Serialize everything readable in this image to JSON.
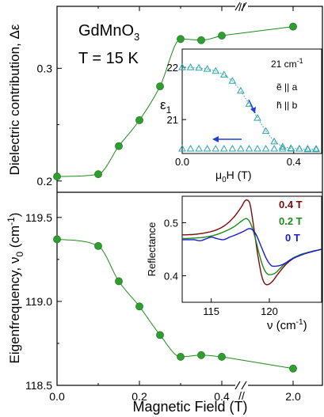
{
  "colors": {
    "marker": "#2e9e2e",
    "fit": "#1f8a1f",
    "inset_points": "#2aa3a8",
    "arrow": "#1f3fd6",
    "r04": "#7a0a0a",
    "r02": "#1a8a1a",
    "r0": "#1a1ad6"
  },
  "chart_data": [
    {
      "type": "scatter",
      "panel": "top",
      "title": "GdMnO3",
      "title_main": "GdMnO",
      "title_sub": "3",
      "temperature": "T = 15 K",
      "ylabel": "Dielectric contribution, Δε",
      "ylim": [
        0.19,
        0.355
      ],
      "yticks": [
        0.2,
        0.3
      ],
      "ytick_labels": [
        "0.2",
        "0.3"
      ],
      "x": [
        0.0,
        0.1,
        0.15,
        0.2,
        0.25,
        0.3,
        0.35,
        0.4,
        2.0
      ],
      "y": [
        0.204,
        0.206,
        0.231,
        0.254,
        0.284,
        0.326,
        0.325,
        0.329,
        0.337
      ],
      "fit": true
    },
    {
      "type": "scatter",
      "panel": "bottom",
      "ylabel_main": "Eigenfrequency, ν",
      "ylabel_sub": "0",
      "ylabel_unit": " (cm",
      "ylabel_exp": "-1",
      "ylabel_close": ")",
      "ylim": [
        118.5,
        119.65
      ],
      "yticks": [
        118.5,
        119.0,
        119.5
      ],
      "ytick_labels": [
        "118.5",
        "119.0",
        "119.5"
      ],
      "x": [
        0.0,
        0.1,
        0.15,
        0.2,
        0.25,
        0.3,
        0.35,
        0.4,
        2.0
      ],
      "y": [
        119.37,
        119.33,
        119.12,
        118.97,
        118.8,
        118.67,
        118.68,
        118.67,
        118.6
      ],
      "fit": true,
      "xlabel": "Magnetic Field (T)",
      "xticks": [
        0.0,
        0.2,
        0.4,
        2.0
      ],
      "xtick_labels": [
        "0.0",
        "0.2",
        "0.4",
        "2.0"
      ],
      "axis_break": "//"
    },
    {
      "type": "scatter",
      "panel": "inset-top",
      "ylabel": "ε1",
      "ylabel_main": "ε",
      "ylabel_sub": "1",
      "xlabel_mu": "μ",
      "xlabel_sub": "0",
      "xlabel_rest": "H (T)",
      "xlim": [
        0.0,
        0.5
      ],
      "ylim": [
        20.35,
        22.35
      ],
      "xticks": [
        0.0,
        0.4
      ],
      "xtick_labels": [
        "0.0",
        "0.4"
      ],
      "yticks": [
        21,
        22
      ],
      "ytick_labels": [
        "21",
        "22"
      ],
      "annotations": {
        "freq": "21 cm",
        "freq_exp": "-1",
        "e": "ẽ || a",
        "h": "h̃ || b"
      },
      "series": [
        {
          "x": [
            0.0,
            0.03,
            0.06,
            0.09,
            0.12,
            0.15,
            0.18,
            0.21,
            0.24,
            0.27,
            0.3,
            0.33,
            0.36,
            0.39,
            0.42,
            0.45,
            0.48
          ],
          "y": [
            22.0,
            22.0,
            21.99,
            21.97,
            21.93,
            21.86,
            21.74,
            21.55,
            21.3,
            21.03,
            20.78,
            20.58,
            20.48,
            20.45,
            20.44,
            20.43,
            20.43
          ]
        },
        {
          "x": [
            0.0,
            0.03,
            0.06,
            0.09,
            0.12,
            0.15,
            0.18,
            0.21,
            0.24,
            0.27,
            0.3,
            0.33,
            0.36,
            0.39,
            0.42,
            0.45,
            0.48
          ],
          "y": [
            20.44,
            20.44,
            20.44,
            20.44,
            20.44,
            20.44,
            20.44,
            20.44,
            20.44,
            20.44,
            20.44,
            20.44,
            20.44,
            20.44,
            20.44,
            20.44,
            20.44
          ]
        }
      ]
    },
    {
      "type": "line",
      "panel": "inset-bottom",
      "ylabel": "Reflectance",
      "xlabel_main": "ν",
      "xlabel_unit": " (cm",
      "xlabel_exp": "-1",
      "xlabel_close": ")",
      "xlim": [
        112.5,
        124.5
      ],
      "ylim": [
        0.35,
        0.55
      ],
      "xticks": [
        115,
        120
      ],
      "xtick_labels": [
        "115",
        "120"
      ],
      "yticks": [
        0.4,
        0.5
      ],
      "ytick_labels": [
        "0.4",
        "0.5"
      ],
      "series": [
        {
          "name": "0.4 T",
          "x": [
            112.5,
            113.5,
            114.5,
            115.5,
            116.3,
            117.0,
            117.6,
            118.0,
            118.3,
            118.6,
            119.0,
            119.4,
            119.8,
            120.2,
            120.8,
            121.5,
            122.5,
            123.5,
            124.5
          ],
          "y": [
            0.477,
            0.478,
            0.481,
            0.487,
            0.497,
            0.512,
            0.53,
            0.543,
            0.538,
            0.5,
            0.44,
            0.395,
            0.383,
            0.388,
            0.405,
            0.423,
            0.438,
            0.445,
            0.45
          ]
        },
        {
          "name": "0.2 T",
          "x": [
            112.5,
            113.5,
            114.5,
            115.5,
            116.3,
            117.0,
            117.6,
            118.0,
            118.4,
            118.8,
            119.2,
            119.6,
            120.0,
            120.5,
            121.2,
            122.0,
            123.0,
            124.5
          ],
          "y": [
            0.47,
            0.471,
            0.473,
            0.478,
            0.485,
            0.493,
            0.503,
            0.508,
            0.498,
            0.47,
            0.435,
            0.41,
            0.402,
            0.405,
            0.42,
            0.433,
            0.442,
            0.45
          ]
        },
        {
          "name": "0 T",
          "x": [
            112.5,
            113.5,
            114.0,
            114.6,
            115.0,
            115.5,
            116.0,
            116.6,
            117.2,
            117.8,
            118.3,
            118.8,
            119.3,
            119.8,
            120.3,
            121.0,
            122.0,
            123.0,
            124.5
          ],
          "y": [
            0.468,
            0.468,
            0.466,
            0.47,
            0.473,
            0.47,
            0.468,
            0.473,
            0.478,
            0.484,
            0.489,
            0.48,
            0.455,
            0.43,
            0.418,
            0.42,
            0.432,
            0.441,
            0.45
          ]
        }
      ]
    }
  ]
}
